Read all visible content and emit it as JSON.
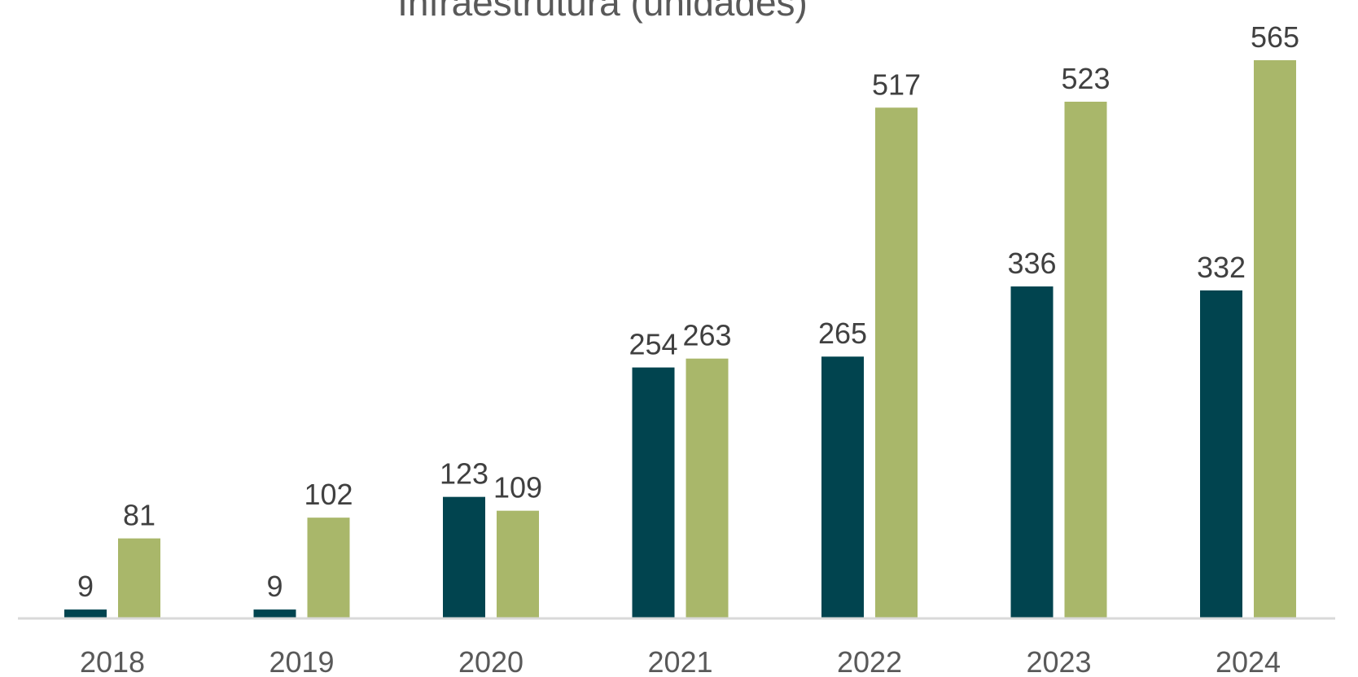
{
  "chart_data": {
    "type": "bar",
    "title": "Infraestrutura (unidades)",
    "categories": [
      "2018",
      "2019",
      "2020",
      "2021",
      "2022",
      "2023",
      "2024"
    ],
    "series": [
      {
        "values": [
          9,
          9,
          123,
          254,
          265,
          336,
          332
        ],
        "color": "#01444f"
      },
      {
        "values": [
          81,
          102,
          109,
          263,
          517,
          523,
          565
        ],
        "color": "#a9b76a"
      }
    ],
    "ylim": [
      0,
      565
    ],
    "grid": false,
    "axis_color": "#d9d9d9"
  }
}
